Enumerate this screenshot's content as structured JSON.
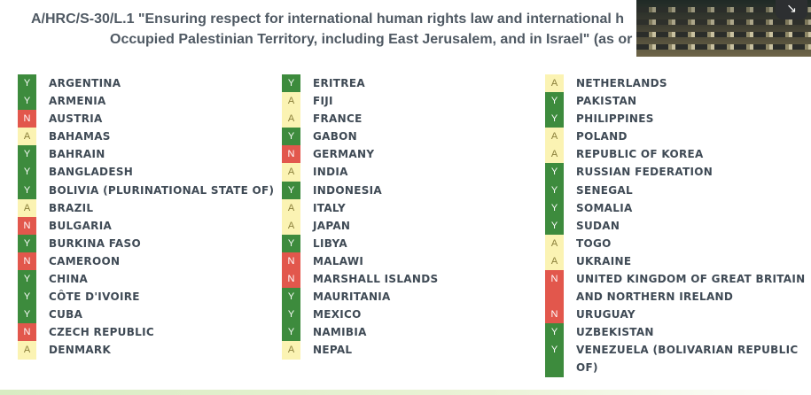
{
  "title": {
    "line1": "A/HRC/S-30/L.1 \"Ensuring respect for international human rights law and international h",
    "line2": "Occupied Palestinian Territory, including East Jerusalem, and in Israel\" (as or"
  },
  "photo_button_icon": "collapse-arrow-icon",
  "vote_colors": {
    "Y": "#3d8b3d",
    "N": "#e2574c",
    "A": "#fbf3b3"
  },
  "columns": [
    [
      {
        "vote": "Y",
        "name": "ARGENTINA"
      },
      {
        "vote": "Y",
        "name": "ARMENIA"
      },
      {
        "vote": "N",
        "name": "AUSTRIA"
      },
      {
        "vote": "A",
        "name": "BAHAMAS"
      },
      {
        "vote": "Y",
        "name": "BAHRAIN"
      },
      {
        "vote": "Y",
        "name": "BANGLADESH"
      },
      {
        "vote": "Y",
        "name": "BOLIVIA (PLURINATIONAL STATE OF)"
      },
      {
        "vote": "A",
        "name": "BRAZIL"
      },
      {
        "vote": "N",
        "name": "BULGARIA"
      },
      {
        "vote": "Y",
        "name": "BURKINA FASO"
      },
      {
        "vote": "N",
        "name": "CAMEROON"
      },
      {
        "vote": "Y",
        "name": "CHINA"
      },
      {
        "vote": "Y",
        "name": "CÔTE D'IVOIRE"
      },
      {
        "vote": "Y",
        "name": "CUBA"
      },
      {
        "vote": "N",
        "name": "CZECH REPUBLIC"
      },
      {
        "vote": "A",
        "name": "DENMARK"
      }
    ],
    [
      {
        "vote": "Y",
        "name": "ERITREA"
      },
      {
        "vote": "A",
        "name": "FIJI"
      },
      {
        "vote": "A",
        "name": "FRANCE"
      },
      {
        "vote": "Y",
        "name": "GABON"
      },
      {
        "vote": "N",
        "name": "GERMANY"
      },
      {
        "vote": "A",
        "name": "INDIA"
      },
      {
        "vote": "Y",
        "name": "INDONESIA"
      },
      {
        "vote": "A",
        "name": "ITALY"
      },
      {
        "vote": "A",
        "name": "JAPAN"
      },
      {
        "vote": "Y",
        "name": "LIBYA"
      },
      {
        "vote": "N",
        "name": "MALAWI"
      },
      {
        "vote": "N",
        "name": "MARSHALL ISLANDS"
      },
      {
        "vote": "Y",
        "name": "MAURITANIA"
      },
      {
        "vote": "Y",
        "name": "MEXICO"
      },
      {
        "vote": "Y",
        "name": "NAMIBIA"
      },
      {
        "vote": "A",
        "name": "NEPAL"
      }
    ],
    [
      {
        "vote": "A",
        "name": "NETHERLANDS"
      },
      {
        "vote": "Y",
        "name": "PAKISTAN"
      },
      {
        "vote": "Y",
        "name": "PHILIPPINES"
      },
      {
        "vote": "A",
        "name": "POLAND"
      },
      {
        "vote": "A",
        "name": "REPUBLIC OF KOREA"
      },
      {
        "vote": "Y",
        "name": "RUSSIAN FEDERATION"
      },
      {
        "vote": "Y",
        "name": "SENEGAL"
      },
      {
        "vote": "Y",
        "name": "SOMALIA"
      },
      {
        "vote": "Y",
        "name": "SUDAN"
      },
      {
        "vote": "A",
        "name": "TOGO"
      },
      {
        "vote": "A",
        "name": "UKRAINE"
      },
      {
        "vote": "N",
        "name": "UNITED KINGDOM OF GREAT BRITAIN AND NORTHERN IRELAND",
        "tall": true
      },
      {
        "vote": "N",
        "name": "URUGUAY"
      },
      {
        "vote": "Y",
        "name": "UZBEKISTAN"
      },
      {
        "vote": "Y",
        "name": "VENEZUELA (BOLIVARIAN REPUBLIC OF)",
        "tall": true
      }
    ]
  ]
}
